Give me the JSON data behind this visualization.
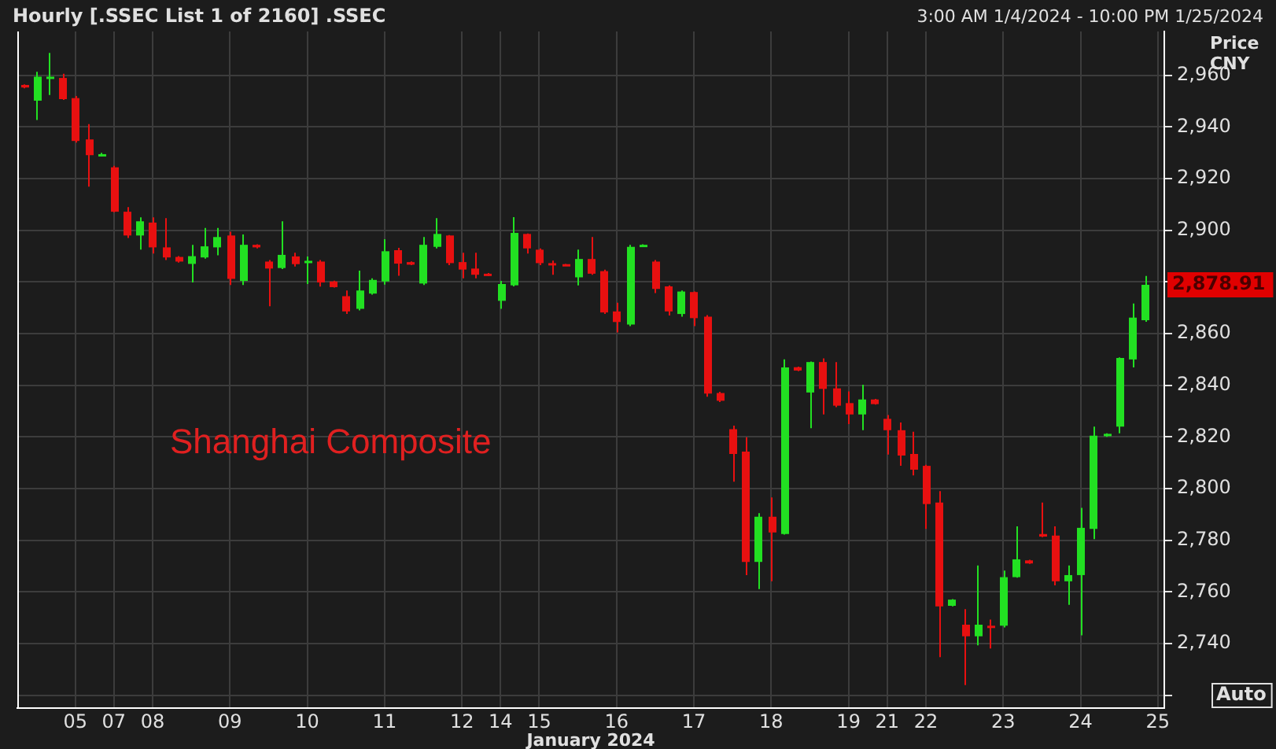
{
  "chart_data": {
    "type": "candlestick",
    "title": "Hourly [.SSEC List 1 of 2160] .SSEC",
    "subtitle": "3:00 AM 1/4/2024 - 10:00 PM 1/25/2024",
    "xlabel": "January 2024",
    "ylabel": "Price CNY",
    "categories": [
      null,
      null,
      null,
      null,
      "05",
      null,
      null,
      "07",
      null,
      null,
      "08",
      null,
      null,
      null,
      null,
      null,
      "09",
      null,
      null,
      null,
      null,
      null,
      "10",
      null,
      null,
      null,
      null,
      null,
      "11",
      null,
      null,
      null,
      null,
      null,
      "12",
      null,
      null,
      "14",
      null,
      null,
      "15",
      null,
      null,
      null,
      null,
      null,
      "16",
      null,
      null,
      null,
      null,
      null,
      "17",
      null,
      null,
      null,
      null,
      null,
      "18",
      null,
      null,
      null,
      null,
      null,
      "19",
      null,
      null,
      "21",
      null,
      null,
      "22",
      null,
      null,
      null,
      null,
      null,
      "23",
      null,
      null,
      null,
      null,
      null,
      "24",
      null,
      null,
      null,
      null,
      null,
      "25"
    ],
    "ohlc": [
      [
        2956.3,
        2956.5,
        2955,
        2955.3
      ],
      [
        2950.2,
        2961.4,
        2942.7,
        2959.5
      ],
      [
        2959,
        2968.7,
        2952.4,
        2959.5
      ],
      [
        2959,
        2960.6,
        2950.5,
        2950.8
      ],
      [
        2951.2,
        2952,
        2934,
        2934.6
      ],
      [
        2935.2,
        2941.1,
        2916.9,
        2929.1
      ],
      [
        2929,
        2930,
        2928.7,
        2929.5
      ],
      [
        2924.4,
        2925,
        2907,
        2907.2
      ],
      [
        2907.2,
        2909,
        2897,
        2898
      ],
      [
        2898,
        2905,
        2892.5,
        2903.5
      ],
      [
        2903,
        2905,
        2891,
        2893.4
      ],
      [
        2893.4,
        2904.7,
        2888.5,
        2889.5
      ],
      [
        2889.7,
        2890,
        2887.5,
        2887.9
      ],
      [
        2887,
        2894.4,
        2879.8,
        2890
      ],
      [
        2889.5,
        2900.9,
        2889,
        2893.8
      ],
      [
        2893.4,
        2900.9,
        2890.3,
        2897.4
      ],
      [
        2898,
        2899.5,
        2878.8,
        2881.2
      ],
      [
        2880.4,
        2898.4,
        2878.8,
        2894.4
      ],
      [
        2894.4,
        2894.6,
        2893,
        2893.4
      ],
      [
        2887.9,
        2888.5,
        2870.6,
        2885.2
      ],
      [
        2885.4,
        2903.5,
        2885,
        2890.5
      ],
      [
        2889.9,
        2891.3,
        2886,
        2886.9
      ],
      [
        2887.7,
        2889.9,
        2879.2,
        2888.2
      ],
      [
        2887.9,
        2888.5,
        2878.2,
        2879.8
      ],
      [
        2880.2,
        2880.5,
        2877.8,
        2878
      ],
      [
        2874.5,
        2876.7,
        2867.6,
        2868.6
      ],
      [
        2869.6,
        2884.4,
        2869,
        2876.7
      ],
      [
        2875.5,
        2881.4,
        2875.1,
        2880.8
      ],
      [
        2880.2,
        2896.6,
        2879,
        2891.9
      ],
      [
        2892.3,
        2893.2,
        2882.4,
        2887.1
      ],
      [
        2887.7,
        2888,
        2886.5,
        2886.7
      ],
      [
        2879.4,
        2897.4,
        2878.8,
        2894.4
      ],
      [
        2893.6,
        2904.7,
        2893,
        2898.6
      ],
      [
        2898,
        2898.2,
        2886.5,
        2887.3
      ],
      [
        2887.7,
        2891.3,
        2881.4,
        2884.8
      ],
      [
        2885.2,
        2891.3,
        2881.4,
        2882.8
      ],
      [
        2883.2,
        2883.5,
        2882.3,
        2882.6
      ],
      [
        2872.7,
        2880.4,
        2869.6,
        2879.2
      ],
      [
        2878.7,
        2905.1,
        2878.3,
        2899
      ],
      [
        2898.6,
        2898.8,
        2891,
        2893
      ],
      [
        2892.5,
        2893,
        2886.5,
        2887.3
      ],
      [
        2887.3,
        2888.3,
        2882.8,
        2886.5
      ],
      [
        2886.9,
        2887,
        2886.3,
        2886.5
      ],
      [
        2881.8,
        2892.5,
        2878.7,
        2888.9
      ],
      [
        2888.9,
        2897.4,
        2882.8,
        2883.2
      ],
      [
        2884.2,
        2884.8,
        2867.6,
        2868.2
      ],
      [
        2868.6,
        2872,
        2860.5,
        2864.5
      ],
      [
        2863.5,
        2894.4,
        2862.9,
        2893.6
      ],
      [
        2893.9,
        2894.6,
        2893.7,
        2894.4
      ],
      [
        2887.9,
        2888.5,
        2875.7,
        2877.3
      ],
      [
        2878.3,
        2878.7,
        2867,
        2868.6
      ],
      [
        2867.6,
        2876.7,
        2866.6,
        2876.3
      ],
      [
        2876.1,
        2876.3,
        2862.9,
        2866
      ],
      [
        2866.6,
        2867.2,
        2835.6,
        2836.8
      ],
      [
        2837,
        2837.5,
        2833.5,
        2834
      ],
      [
        2823,
        2824.4,
        2802.7,
        2813.4
      ],
      [
        2814.3,
        2819.9,
        2766.5,
        2771.6
      ],
      [
        2771.6,
        2790.5,
        2761.1,
        2789.1
      ],
      [
        2789.1,
        2796.6,
        2764.1,
        2783
      ],
      [
        2782.4,
        2850,
        2782.2,
        2846.9
      ],
      [
        2847,
        2847.2,
        2845.5,
        2845.7
      ],
      [
        2837.2,
        2849.2,
        2823.4,
        2849
      ],
      [
        2849,
        2850.4,
        2828.7,
        2838.6
      ],
      [
        2838.8,
        2849,
        2831.5,
        2832.1
      ],
      [
        2833.1,
        2837.6,
        2825,
        2828.7
      ],
      [
        2828.7,
        2840.2,
        2822.6,
        2834.5
      ],
      [
        2834.5,
        2834.7,
        2832.5,
        2832.7
      ],
      [
        2827,
        2828.5,
        2813.2,
        2822.6
      ],
      [
        2822.6,
        2825.6,
        2808.8,
        2812.8
      ],
      [
        2813.4,
        2822,
        2805.1,
        2807.3
      ],
      [
        2808.8,
        2809.2,
        2784.4,
        2794
      ],
      [
        2794.6,
        2799,
        2734.7,
        2754.4
      ],
      [
        2754.6,
        2757.2,
        2754.4,
        2757
      ],
      [
        2747.3,
        2753.3,
        2723.9,
        2742.8
      ],
      [
        2742.8,
        2770.2,
        2739.3,
        2747.3
      ],
      [
        2746.9,
        2749.3,
        2738.1,
        2746.6
      ],
      [
        2746.9,
        2768.2,
        2746.2,
        2765.7
      ],
      [
        2765.7,
        2785.4,
        2765.5,
        2772.6
      ],
      [
        2772.2,
        2772.4,
        2770.8,
        2771
      ],
      [
        2782.4,
        2794.6,
        2781.2,
        2781.4
      ],
      [
        2781.8,
        2785.4,
        2762.5,
        2764.1
      ],
      [
        2764.1,
        2770.2,
        2755,
        2766.5
      ],
      [
        2766.5,
        2792.5,
        2743.2,
        2784.8
      ],
      [
        2784.4,
        2824,
        2780.4,
        2820.5
      ],
      [
        2820.3,
        2821.4,
        2820,
        2821.2
      ],
      [
        2824,
        2850.8,
        2821.4,
        2850.6
      ],
      [
        2850,
        2871.7,
        2846.9,
        2866.2
      ],
      [
        2865.2,
        2882.3,
        2864.6,
        2878.91
      ],
      null
    ],
    "colors": [
      "#e81010",
      "#22e022",
      "#22e022",
      "#e81010",
      "#e81010",
      "#e81010",
      "#22e022",
      "#e81010",
      "#e81010",
      "#22e022",
      "#e81010",
      "#e81010",
      "#e81010",
      "#22e022",
      "#22e022",
      "#22e022",
      "#e81010",
      "#22e022",
      "#e81010",
      "#e81010",
      "#22e022",
      "#e81010",
      "#22e022",
      "#e81010",
      "#e81010",
      "#e81010",
      "#22e022",
      "#22e022",
      "#22e022",
      "#e81010",
      "#e81010",
      "#22e022",
      "#22e022",
      "#e81010",
      "#e81010",
      "#e81010",
      "#e81010",
      "#22e022",
      "#22e022",
      "#e81010",
      "#e81010",
      "#e81010",
      "#e81010",
      "#22e022",
      "#e81010",
      "#e81010",
      "#e81010",
      "#22e022",
      "#22e022",
      "#e81010",
      "#e81010",
      "#22e022",
      "#e81010",
      "#e81010",
      "#e81010",
      "#e81010",
      "#e81010",
      "#22e022",
      "#e81010",
      "#22e022",
      "#e81010",
      "#22e022",
      "#e81010",
      "#e81010",
      "#e81010",
      "#22e022",
      "#e81010",
      "#e81010",
      "#e81010",
      "#e81010",
      "#e81010",
      "#e81010",
      "#22e022",
      "#e81010",
      "#22e022",
      "#e81010",
      "#22e022",
      "#22e022",
      "#e81010",
      "#e81010",
      "#e81010",
      "#22e022",
      "#22e022",
      "#22e022",
      "#22e022",
      "#22e022",
      "#22e022",
      "#22e022",
      null
    ],
    "ylim": [
      2715,
      2977
    ],
    "yticks": [
      {
        "value": 2720,
        "label": null
      },
      {
        "value": 2740,
        "label": "2,740"
      },
      {
        "value": 2760,
        "label": "2,760"
      },
      {
        "value": 2780,
        "label": "2,780"
      },
      {
        "value": 2800,
        "label": "2,800"
      },
      {
        "value": 2820,
        "label": "2,820"
      },
      {
        "value": 2840,
        "label": "2,840"
      },
      {
        "value": 2860,
        "label": "2,860"
      },
      {
        "value": 2880,
        "label": null
      },
      {
        "value": 2900,
        "label": "2,900"
      },
      {
        "value": 2920,
        "label": "2,920"
      },
      {
        "value": 2940,
        "label": "2,940"
      },
      {
        "value": 2960,
        "label": "2,960"
      }
    ],
    "grid": true,
    "legend": false,
    "annotations": [
      "Shanghai Composite",
      "Auto",
      "2,878.91"
    ]
  }
}
